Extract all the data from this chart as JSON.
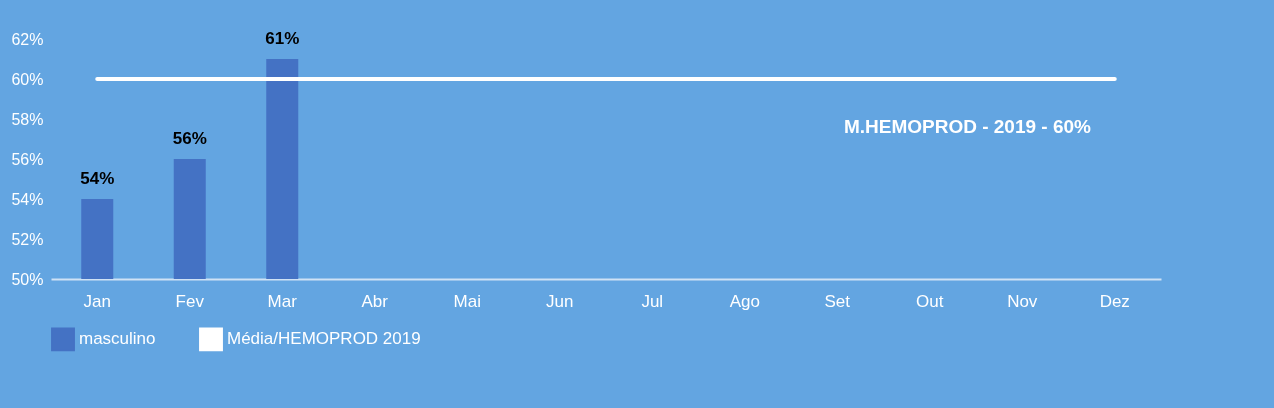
{
  "chart_data": {
    "type": "bar",
    "categories": [
      "Jan",
      "Fev",
      "Mar",
      "Abr",
      "Mai",
      "Jun",
      "Jul",
      "Ago",
      "Set",
      "Out",
      "Nov",
      "Dez"
    ],
    "series": [
      {
        "name": "masculino",
        "color": "#4472c4",
        "values": [
          54,
          56,
          61,
          null,
          null,
          null,
          null,
          null,
          null,
          null,
          null,
          null
        ],
        "value_labels": [
          "54%",
          "56%",
          "61%",
          null,
          null,
          null,
          null,
          null,
          null,
          null,
          null,
          null
        ]
      },
      {
        "name": "Média/HEMOPROD 2019",
        "type": "line",
        "color": "#ffffff",
        "values": [
          60,
          60,
          60,
          60,
          60,
          60,
          60,
          60,
          60,
          60,
          60,
          60
        ]
      }
    ],
    "ylim": [
      50,
      62
    ],
    "yticks": [
      {
        "value": 50,
        "label": "50%"
      },
      {
        "value": 52,
        "label": "52%"
      },
      {
        "value": 54,
        "label": "54%"
      },
      {
        "value": 56,
        "label": "56%"
      },
      {
        "value": 58,
        "label": "58%"
      },
      {
        "value": 60,
        "label": "60%"
      },
      {
        "value": 62,
        "label": "62%"
      }
    ],
    "annotations": [
      "M.HEMOPROD - 2019 - 60%"
    ],
    "grid": false,
    "legend": "bottom"
  }
}
